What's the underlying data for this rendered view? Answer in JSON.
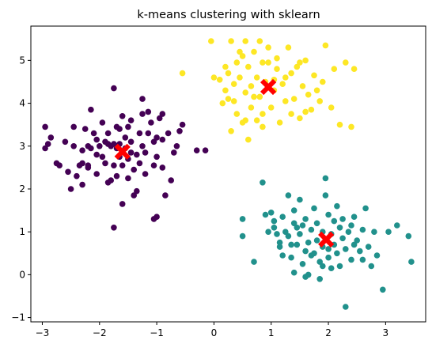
{
  "chart_data": {
    "type": "scatter",
    "title": "k-means clustering with sklearn",
    "xlabel": "",
    "ylabel": "",
    "xlim": [
      -3.2,
      3.7
    ],
    "ylim": [
      -1.1,
      5.8
    ],
    "xticks": [
      -3,
      -2,
      -1,
      0,
      1,
      2,
      3
    ],
    "yticks": [
      -1,
      0,
      1,
      2,
      3,
      4,
      5
    ],
    "grid": false,
    "colors": {
      "cluster_purple": "#440154",
      "cluster_teal": "#21918c",
      "cluster_yellow": "#fde725",
      "centroid": "#ff0000"
    },
    "series": [
      {
        "color": "#440154",
        "points": [
          [
            -2.95,
            3.45
          ],
          [
            -2.9,
            3.05
          ],
          [
            -2.95,
            2.95
          ],
          [
            -2.85,
            3.2
          ],
          [
            -2.75,
            2.6
          ],
          [
            -2.7,
            2.55
          ],
          [
            -2.6,
            3.1
          ],
          [
            -2.55,
            2.4
          ],
          [
            -2.5,
            2.0
          ],
          [
            -2.45,
            3.45
          ],
          [
            -2.4,
            2.3
          ],
          [
            -2.35,
            2.55
          ],
          [
            -2.3,
            2.6
          ],
          [
            -2.3,
            2.9
          ],
          [
            -2.25,
            3.4
          ],
          [
            -2.2,
            2.5
          ],
          [
            -2.2,
            3.0
          ],
          [
            -2.15,
            3.85
          ],
          [
            -2.1,
            3.3
          ],
          [
            -2.05,
            3.15
          ],
          [
            -2.05,
            2.8
          ],
          [
            -2.05,
            2.35
          ],
          [
            -2.0,
            3.0
          ],
          [
            -1.95,
            3.55
          ],
          [
            -1.9,
            2.6
          ],
          [
            -1.9,
            3.1
          ],
          [
            -1.85,
            3.05
          ],
          [
            -1.85,
            2.15
          ],
          [
            -1.8,
            3.0
          ],
          [
            -1.8,
            2.2
          ],
          [
            -1.75,
            3.05
          ],
          [
            -1.75,
            2.55
          ],
          [
            -1.75,
            4.35
          ],
          [
            -1.7,
            2.95
          ],
          [
            -1.7,
            3.45
          ],
          [
            -1.7,
            2.3
          ],
          [
            -1.65,
            2.75
          ],
          [
            -1.65,
            3.05
          ],
          [
            -1.6,
            2.55
          ],
          [
            -1.6,
            1.65
          ],
          [
            -1.6,
            3.7
          ],
          [
            -1.55,
            3.2
          ],
          [
            -1.55,
            2.95
          ],
          [
            -1.5,
            2.25
          ],
          [
            -1.5,
            2.7
          ],
          [
            -1.45,
            3.6
          ],
          [
            -1.45,
            3.1
          ],
          [
            -1.4,
            2.45
          ],
          [
            -1.4,
            1.85
          ],
          [
            -1.35,
            2.8
          ],
          [
            -1.3,
            3.3
          ],
          [
            -1.3,
            2.6
          ],
          [
            -1.25,
            4.1
          ],
          [
            -1.25,
            3.0
          ],
          [
            -1.2,
            2.35
          ],
          [
            -1.2,
            2.85
          ],
          [
            -1.15,
            3.3
          ],
          [
            -1.15,
            3.8
          ],
          [
            -1.1,
            3.55
          ],
          [
            -1.05,
            2.55
          ],
          [
            -1.05,
            3.1
          ],
          [
            -1.0,
            3.2
          ],
          [
            -1.0,
            2.75
          ],
          [
            -0.95,
            3.65
          ],
          [
            -0.9,
            2.5
          ],
          [
            -0.9,
            3.15
          ],
          [
            -0.85,
            1.85
          ],
          [
            -0.8,
            3.3
          ],
          [
            -0.75,
            2.2
          ],
          [
            -0.7,
            2.85
          ],
          [
            -0.65,
            3.0
          ],
          [
            -0.6,
            3.35
          ],
          [
            -0.55,
            3.5
          ],
          [
            -0.3,
            2.9
          ],
          [
            -1.0,
            1.35
          ],
          [
            -1.05,
            1.3
          ],
          [
            -1.75,
            1.1
          ],
          [
            -1.35,
            1.95
          ],
          [
            -2.2,
            2.55
          ],
          [
            -2.3,
            2.1
          ],
          [
            -1.95,
            2.75
          ],
          [
            -1.5,
            3.45
          ],
          [
            -0.15,
            2.9
          ],
          [
            -1.45,
            2.85
          ],
          [
            -1.25,
            3.75
          ],
          [
            -2.45,
            3.0
          ],
          [
            -1.85,
            3.3
          ],
          [
            -0.9,
            3.75
          ],
          [
            -2.15,
            2.95
          ],
          [
            -1.65,
            3.4
          ]
        ]
      },
      {
        "color": "#21918c",
        "points": [
          [
            0.5,
            0.9
          ],
          [
            0.5,
            1.3
          ],
          [
            0.7,
            0.3
          ],
          [
            0.85,
            2.15
          ],
          [
            0.9,
            1.4
          ],
          [
            0.95,
            1.0
          ],
          [
            1.05,
            1.25
          ],
          [
            1.1,
            0.95
          ],
          [
            1.15,
            0.75
          ],
          [
            1.2,
            0.45
          ],
          [
            1.2,
            1.35
          ],
          [
            1.25,
            1.0
          ],
          [
            1.3,
            1.85
          ],
          [
            1.35,
            0.4
          ],
          [
            1.35,
            0.7
          ],
          [
            1.4,
            0.05
          ],
          [
            1.4,
            1.5
          ],
          [
            1.45,
            0.7
          ],
          [
            1.5,
            0.95
          ],
          [
            1.5,
            1.75
          ],
          [
            1.55,
            0.25
          ],
          [
            1.55,
            1.15
          ],
          [
            1.6,
            0.55
          ],
          [
            1.6,
            1.3
          ],
          [
            1.65,
            0.75
          ],
          [
            1.65,
            0.0
          ],
          [
            1.7,
            1.05
          ],
          [
            1.7,
            0.45
          ],
          [
            1.75,
            1.55
          ],
          [
            1.8,
            0.8
          ],
          [
            1.8,
            1.2
          ],
          [
            1.85,
            0.3
          ],
          [
            1.85,
            -0.1
          ],
          [
            1.9,
            0.65
          ],
          [
            1.9,
            1.0
          ],
          [
            1.95,
            2.25
          ],
          [
            1.95,
            1.85
          ],
          [
            2.0,
            1.4
          ],
          [
            2.0,
            0.4
          ],
          [
            2.05,
            0.95
          ],
          [
            2.05,
            0.15
          ],
          [
            2.1,
            1.25
          ],
          [
            2.1,
            0.7
          ],
          [
            2.15,
            0.5
          ],
          [
            2.2,
            1.1
          ],
          [
            2.2,
            0.2
          ],
          [
            2.25,
            0.85
          ],
          [
            2.25,
            1.3
          ],
          [
            2.3,
            0.6
          ],
          [
            2.3,
            -0.75
          ],
          [
            2.35,
            1.0
          ],
          [
            2.4,
            0.35
          ],
          [
            2.45,
            1.35
          ],
          [
            2.5,
            0.8
          ],
          [
            2.55,
            0.55
          ],
          [
            2.6,
            1.05
          ],
          [
            2.65,
            1.55
          ],
          [
            2.7,
            0.65
          ],
          [
            2.75,
            0.2
          ],
          [
            2.8,
            1.0
          ],
          [
            2.85,
            0.45
          ],
          [
            2.95,
            -0.35
          ],
          [
            3.05,
            1.0
          ],
          [
            3.2,
            1.15
          ],
          [
            3.4,
            0.9
          ],
          [
            3.45,
            0.3
          ],
          [
            1.45,
            1.1
          ],
          [
            1.15,
            0.65
          ],
          [
            1.0,
            1.45
          ],
          [
            2.4,
            1.15
          ],
          [
            1.75,
            0.5
          ],
          [
            2.15,
            1.6
          ],
          [
            1.3,
            0.9
          ],
          [
            2.6,
            0.35
          ],
          [
            1.9,
            0.2
          ],
          [
            2.45,
            0.7
          ],
          [
            1.6,
            -0.05
          ],
          [
            1.05,
            1.1
          ],
          [
            2.0,
            0.6
          ],
          [
            1.4,
            1.2
          ]
        ]
      },
      {
        "color": "#fde725",
        "points": [
          [
            -0.55,
            4.7
          ],
          [
            -0.05,
            5.45
          ],
          [
            0.0,
            4.6
          ],
          [
            0.1,
            4.55
          ],
          [
            0.15,
            4.0
          ],
          [
            0.2,
            4.3
          ],
          [
            0.2,
            4.85
          ],
          [
            0.25,
            4.7
          ],
          [
            0.3,
            3.35
          ],
          [
            0.3,
            5.45
          ],
          [
            0.35,
            4.05
          ],
          [
            0.35,
            4.45
          ],
          [
            0.4,
            3.75
          ],
          [
            0.4,
            4.95
          ],
          [
            0.45,
            4.6
          ],
          [
            0.5,
            3.55
          ],
          [
            0.5,
            5.1
          ],
          [
            0.55,
            4.25
          ],
          [
            0.55,
            5.45
          ],
          [
            0.6,
            4.85
          ],
          [
            0.65,
            3.9
          ],
          [
            0.65,
            4.4
          ],
          [
            0.7,
            5.2
          ],
          [
            0.75,
            3.6
          ],
          [
            0.75,
            4.6
          ],
          [
            0.8,
            4.15
          ],
          [
            0.8,
            5.45
          ],
          [
            0.85,
            3.75
          ],
          [
            0.85,
            4.95
          ],
          [
            0.9,
            4.5
          ],
          [
            0.95,
            5.3
          ],
          [
            1.0,
            3.9
          ],
          [
            1.05,
            4.3
          ],
          [
            1.1,
            4.8
          ],
          [
            1.1,
            5.05
          ],
          [
            1.15,
            3.55
          ],
          [
            1.2,
            4.45
          ],
          [
            1.25,
            4.05
          ],
          [
            1.3,
            5.3
          ],
          [
            1.35,
            3.75
          ],
          [
            1.35,
            4.7
          ],
          [
            1.4,
            4.1
          ],
          [
            1.45,
            4.85
          ],
          [
            1.5,
            3.65
          ],
          [
            1.55,
            4.4
          ],
          [
            1.6,
            5.0
          ],
          [
            1.65,
            4.2
          ],
          [
            1.7,
            3.85
          ],
          [
            1.75,
            4.65
          ],
          [
            1.8,
            4.3
          ],
          [
            1.9,
            4.5
          ],
          [
            1.95,
            5.35
          ],
          [
            2.05,
            3.9
          ],
          [
            2.1,
            4.8
          ],
          [
            2.2,
            3.5
          ],
          [
            2.3,
            4.95
          ],
          [
            2.4,
            3.45
          ],
          [
            2.45,
            4.8
          ],
          [
            0.6,
            3.15
          ],
          [
            0.55,
            3.6
          ],
          [
            1.05,
            4.55
          ],
          [
            0.95,
            4.95
          ],
          [
            1.6,
            3.8
          ],
          [
            0.25,
            4.1
          ],
          [
            1.25,
            4.6
          ],
          [
            0.7,
            4.15
          ],
          [
            1.85,
            4.05
          ],
          [
            0.45,
            5.2
          ],
          [
            1.5,
            4.95
          ],
          [
            0.85,
            3.45
          ]
        ]
      }
    ],
    "centroids": [
      [
        -1.6,
        2.87
      ],
      [
        1.96,
        0.82
      ],
      [
        0.95,
        4.38
      ]
    ]
  }
}
